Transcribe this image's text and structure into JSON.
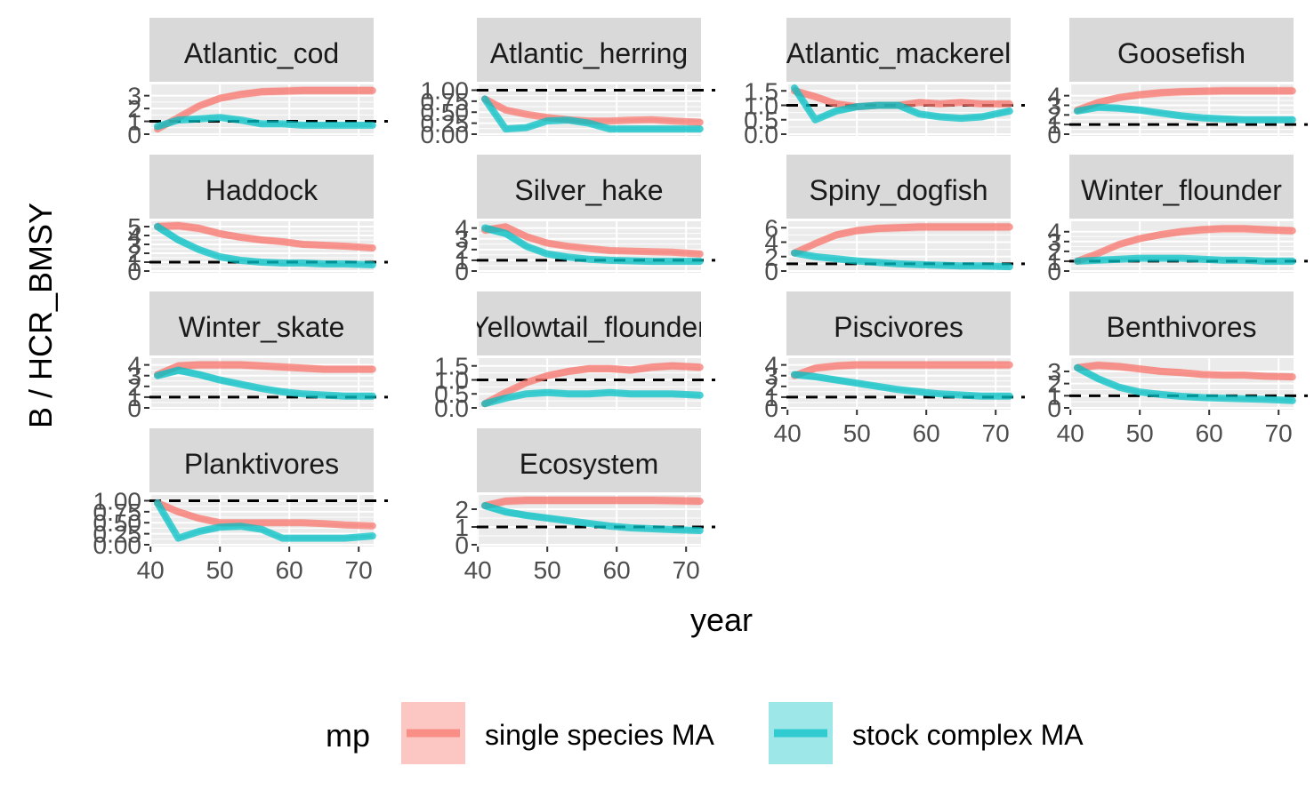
{
  "chart_data": {
    "type": "line",
    "layout": "faceted 4x4 grid, free y scales, shaded ribbons",
    "xlabel": "year",
    "ylabel": "B / HCR_BMSY",
    "xlim": [
      40,
      72
    ],
    "x_ticks": [
      40,
      50,
      60,
      70
    ],
    "reference_line": 1.0,
    "legend": {
      "title": "mp",
      "position": "bottom",
      "entries": [
        {
          "label": "single species MA",
          "color": "#F8766D"
        },
        {
          "label": "stock complex MA",
          "color": "#00BFC4"
        }
      ]
    },
    "x": [
      41,
      44,
      47,
      50,
      53,
      56,
      59,
      62,
      65,
      68,
      72
    ],
    "panels": [
      {
        "title": "Atlantic_cod",
        "ylim": [
          0,
          3.6
        ],
        "y_ticks": [
          "0",
          "1",
          "2",
          "3"
        ],
        "series": [
          {
            "mp": "single species MA",
            "values": [
              0.4,
              1.3,
              2.2,
              2.8,
              3.1,
              3.3,
              3.35,
              3.4,
              3.4,
              3.4,
              3.4
            ]
          },
          {
            "mp": "stock complex MA",
            "values": [
              0.6,
              1.1,
              1.2,
              1.3,
              1.1,
              0.8,
              0.8,
              0.7,
              0.7,
              0.7,
              0.7
            ]
          }
        ]
      },
      {
        "title": "Atlantic_herring",
        "ylim": [
          0,
          1.05
        ],
        "y_ticks": [
          "0.00",
          "0.25",
          "0.50",
          "0.75",
          "1.00"
        ],
        "series": [
          {
            "mp": "single species MA",
            "values": [
              0.8,
              0.55,
              0.45,
              0.38,
              0.33,
              0.3,
              0.3,
              0.32,
              0.33,
              0.3,
              0.27
            ]
          },
          {
            "mp": "stock complex MA",
            "values": [
              0.8,
              0.12,
              0.15,
              0.3,
              0.32,
              0.25,
              0.12,
              0.12,
              0.12,
              0.12,
              0.12
            ]
          }
        ]
      },
      {
        "title": "Atlantic_mackerel",
        "ylim": [
          0,
          1.6
        ],
        "y_ticks": [
          "0.0",
          "0.5",
          "1.0",
          "1.5"
        ],
        "series": [
          {
            "mp": "single species MA",
            "values": [
              1.5,
              1.3,
              1.05,
              0.95,
              1.0,
              1.0,
              1.1,
              1.05,
              1.1,
              1.05,
              1.05
            ]
          },
          {
            "mp": "stock complex MA",
            "values": [
              1.6,
              0.5,
              0.8,
              0.95,
              1.0,
              1.0,
              0.7,
              0.6,
              0.55,
              0.6,
              0.8
            ]
          }
        ]
      },
      {
        "title": "Goosefish",
        "ylim": [
          0,
          4.8
        ],
        "y_ticks": [
          "0",
          "1",
          "2",
          "3",
          "4"
        ],
        "series": [
          {
            "mp": "single species MA",
            "values": [
              2.5,
              3.3,
              3.8,
              4.1,
              4.3,
              4.4,
              4.45,
              4.5,
              4.5,
              4.5,
              4.5
            ]
          },
          {
            "mp": "stock complex MA",
            "values": [
              2.4,
              2.8,
              2.7,
              2.5,
              2.2,
              1.9,
              1.7,
              1.6,
              1.5,
              1.5,
              1.5
            ]
          }
        ]
      },
      {
        "title": "Haddock",
        "ylim": [
          0,
          5.2
        ],
        "y_ticks": [
          "0",
          "1",
          "2",
          "3",
          "4",
          "5"
        ],
        "series": [
          {
            "mp": "single species MA",
            "values": [
              5.0,
              5.1,
              4.8,
              4.2,
              3.8,
              3.5,
              3.3,
              3.0,
              2.9,
              2.8,
              2.6
            ]
          },
          {
            "mp": "stock complex MA",
            "values": [
              5.0,
              3.5,
              2.4,
              1.6,
              1.2,
              1.0,
              0.9,
              0.9,
              0.8,
              0.8,
              0.7
            ]
          }
        ]
      },
      {
        "title": "Silver_hake",
        "ylim": [
          0,
          4.3
        ],
        "y_ticks": [
          "0",
          "1",
          "2",
          "3",
          "4"
        ],
        "series": [
          {
            "mp": "single species MA",
            "values": [
              3.8,
              4.1,
              3.2,
              2.6,
              2.3,
              2.1,
              1.9,
              1.85,
              1.8,
              1.75,
              1.6
            ]
          },
          {
            "mp": "stock complex MA",
            "values": [
              4.0,
              3.5,
              2.3,
              1.6,
              1.3,
              1.1,
              1.0,
              0.95,
              0.9,
              0.9,
              0.9
            ]
          }
        ]
      },
      {
        "title": "Spiny_dogfish",
        "ylim": [
          0,
          6.4
        ],
        "y_ticks": [
          "0",
          "2",
          "4",
          "6"
        ],
        "series": [
          {
            "mp": "single species MA",
            "values": [
              2.5,
              3.8,
              5.0,
              5.6,
              5.9,
              6.0,
              6.1,
              6.1,
              6.1,
              6.1,
              6.1
            ]
          },
          {
            "mp": "stock complex MA",
            "values": [
              2.5,
              2.0,
              1.7,
              1.4,
              1.2,
              1.0,
              0.9,
              0.8,
              0.7,
              0.7,
              0.6
            ]
          }
        ]
      },
      {
        "title": "Winter_flounder",
        "ylim": [
          0,
          4.7
        ],
        "y_ticks": [
          "0",
          "1",
          "2",
          "3",
          "4"
        ],
        "series": [
          {
            "mp": "single species MA",
            "values": [
              1.0,
              1.8,
              2.7,
              3.3,
              3.7,
              4.0,
              4.2,
              4.3,
              4.3,
              4.2,
              4.1
            ]
          },
          {
            "mp": "stock complex MA",
            "values": [
              1.0,
              1.1,
              1.2,
              1.3,
              1.3,
              1.3,
              1.2,
              1.1,
              1.1,
              1.0,
              1.0
            ]
          }
        ]
      },
      {
        "title": "Winter_skate",
        "ylim": [
          0,
          4.3
        ],
        "y_ticks": [
          "0",
          "1",
          "2",
          "3",
          "4"
        ],
        "series": [
          {
            "mp": "single species MA",
            "values": [
              3.1,
              3.9,
              4.0,
              4.0,
              4.0,
              3.9,
              3.8,
              3.7,
              3.6,
              3.6,
              3.6
            ]
          },
          {
            "mp": "stock complex MA",
            "values": [
              3.0,
              3.5,
              3.1,
              2.6,
              2.2,
              1.8,
              1.5,
              1.3,
              1.2,
              1.1,
              1.1
            ]
          }
        ]
      },
      {
        "title": "Yellowtail_flounder",
        "ylim": [
          0,
          1.65
        ],
        "y_ticks": [
          "0.0",
          "0.5",
          "1.0",
          "1.5"
        ],
        "series": [
          {
            "mp": "single species MA",
            "values": [
              0.15,
              0.55,
              0.9,
              1.15,
              1.3,
              1.4,
              1.4,
              1.35,
              1.45,
              1.5,
              1.45
            ]
          },
          {
            "mp": "stock complex MA",
            "values": [
              0.15,
              0.35,
              0.5,
              0.55,
              0.5,
              0.5,
              0.55,
              0.5,
              0.5,
              0.5,
              0.45
            ]
          }
        ]
      },
      {
        "title": "Piscivores",
        "ylim": [
          0,
          4.3
        ],
        "y_ticks": [
          "0",
          "1",
          "2",
          "3",
          "4"
        ],
        "series": [
          {
            "mp": "single species MA",
            "values": [
              3.0,
              3.7,
              3.9,
              4.0,
              4.0,
              4.0,
              4.0,
              4.0,
              4.0,
              4.0,
              4.0
            ]
          },
          {
            "mp": "stock complex MA",
            "values": [
              3.1,
              2.9,
              2.6,
              2.3,
              2.0,
              1.7,
              1.5,
              1.3,
              1.2,
              1.1,
              1.1
            ]
          }
        ]
      },
      {
        "title": "Benthivores",
        "ylim": [
          0,
          3.8
        ],
        "y_ticks": [
          "0",
          "1",
          "2",
          "3"
        ],
        "series": [
          {
            "mp": "single species MA",
            "values": [
              3.3,
              3.5,
              3.4,
              3.2,
              3.0,
              2.9,
              2.75,
              2.7,
              2.7,
              2.6,
              2.55
            ]
          },
          {
            "mp": "stock complex MA",
            "values": [
              3.3,
              2.4,
              1.7,
              1.3,
              1.1,
              0.95,
              0.85,
              0.8,
              0.75,
              0.7,
              0.6
            ]
          }
        ]
      },
      {
        "title": "Planktivores",
        "ylim": [
          0,
          1.05
        ],
        "y_ticks": [
          "0.00",
          "0.25",
          "0.50",
          "0.75",
          "1.00"
        ],
        "series": [
          {
            "mp": "single species MA",
            "values": [
              0.95,
              0.75,
              0.6,
              0.5,
              0.5,
              0.5,
              0.5,
              0.5,
              0.48,
              0.45,
              0.43
            ]
          },
          {
            "mp": "stock complex MA",
            "values": [
              0.95,
              0.15,
              0.3,
              0.4,
              0.42,
              0.35,
              0.15,
              0.15,
              0.15,
              0.15,
              0.2
            ]
          }
        ]
      },
      {
        "title": "Ecosystem",
        "ylim": [
          0,
          2.6
        ],
        "y_ticks": [
          "0",
          "1",
          "2"
        ],
        "series": [
          {
            "mp": "single species MA",
            "values": [
              2.2,
              2.45,
              2.5,
              2.5,
              2.5,
              2.5,
              2.5,
              2.5,
              2.5,
              2.48,
              2.45
            ]
          },
          {
            "mp": "stock complex MA",
            "values": [
              2.2,
              1.85,
              1.65,
              1.5,
              1.35,
              1.2,
              1.05,
              0.95,
              0.9,
              0.85,
              0.8
            ]
          }
        ]
      }
    ]
  }
}
